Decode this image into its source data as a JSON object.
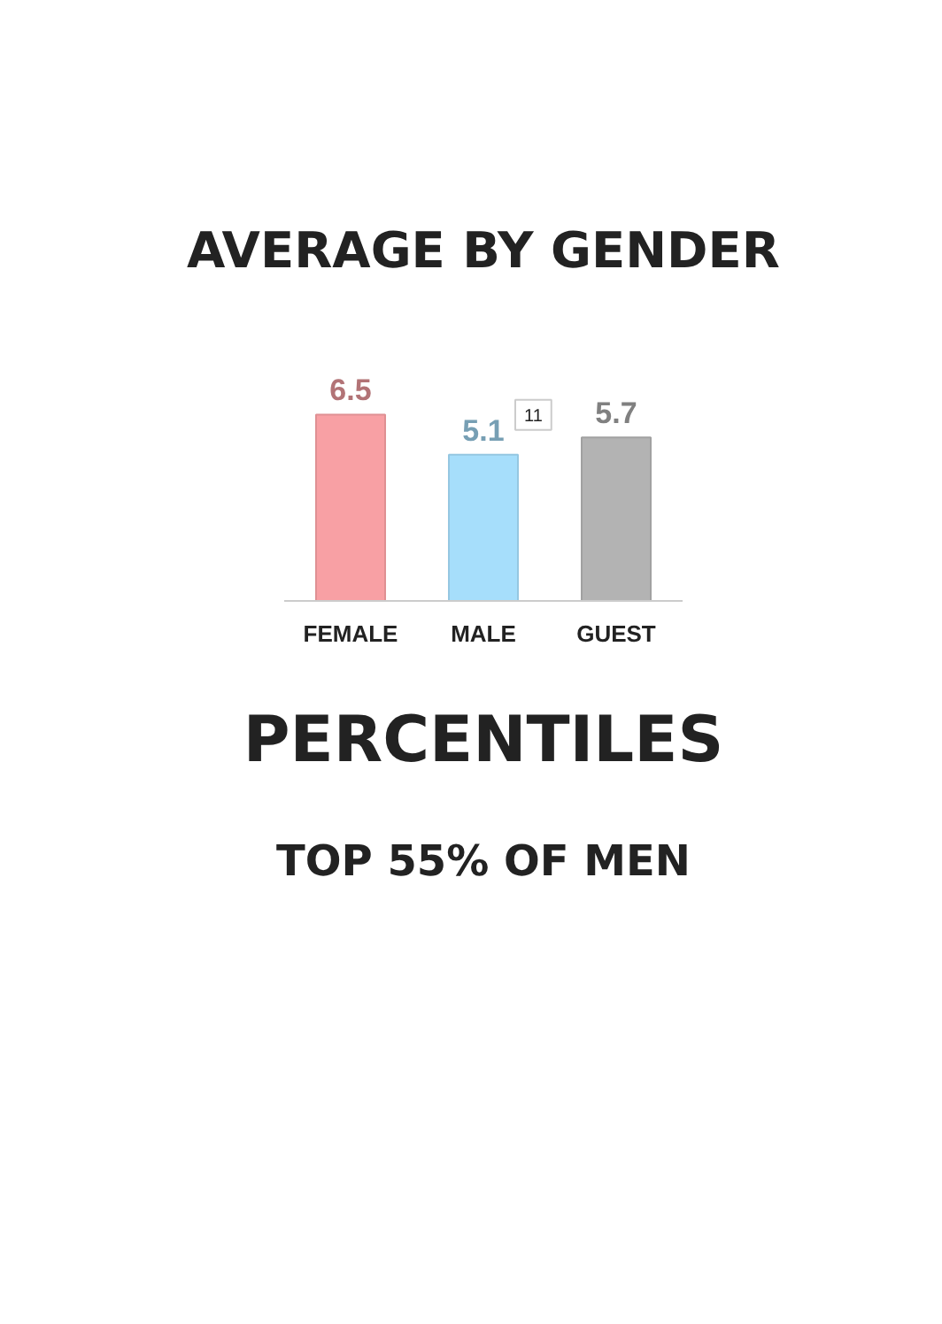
{
  "chart_data": {
    "type": "bar",
    "title": "AVERAGE BY GENDER",
    "categories": [
      "FEMALE",
      "MALE",
      "GUEST"
    ],
    "values": [
      6.5,
      5.1,
      5.7
    ],
    "colors": [
      "#f8a0a4",
      "#a6defb",
      "#b3b3b3"
    ],
    "data_labels": true,
    "grid": false,
    "annotations": [
      {
        "text": "11",
        "x": "MALE",
        "y": 5.1
      },
      "PERCENTILES",
      "TOP 55% OF MEN"
    ]
  }
}
